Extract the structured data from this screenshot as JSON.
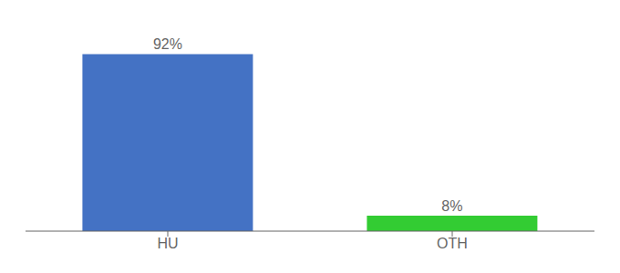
{
  "chart_data": {
    "type": "bar",
    "categories": [
      "HU",
      "OTH"
    ],
    "values": [
      92,
      8
    ],
    "value_labels": [
      "92%",
      "8%"
    ],
    "colors": [
      "#4472c4",
      "#33cc33"
    ],
    "ylim": [
      0,
      105
    ],
    "data_labels": true,
    "tick_labels": "x",
    "grid": false
  }
}
